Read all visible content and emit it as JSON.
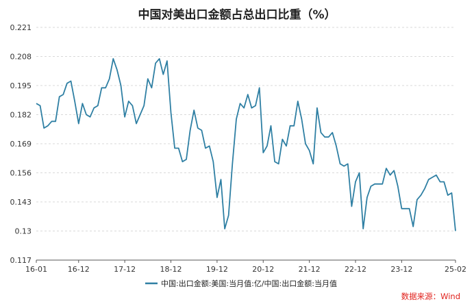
{
  "chart_data": {
    "type": "line",
    "title": "中国对美出口金额占总出口比重（%）",
    "source": "数据来源：Wind",
    "x_tick_labels": [
      "16-01",
      "16-12",
      "17-12",
      "18-12",
      "19-12",
      "20-12",
      "21-12",
      "22-12",
      "23-12",
      "25-02"
    ],
    "y_tick_labels": [
      "0.117",
      "0.13",
      "0.143",
      "0.156",
      "0.169",
      "0.182",
      "0.195",
      "0.208",
      "0.221"
    ],
    "ylim": [
      0.117,
      0.221
    ],
    "xlim": [
      "2016-01",
      "2025-02"
    ],
    "grid": "horizontal dashed",
    "legend_position": "bottom-center",
    "series": [
      {
        "name": "中国:出口金额:美国:当月值:亿/中国:出口金额:当月值",
        "color": "#2e7fa3",
        "x": [
          "2016-01",
          "2016-02",
          "2016-03",
          "2016-04",
          "2016-05",
          "2016-06",
          "2016-07",
          "2016-08",
          "2016-09",
          "2016-10",
          "2016-11",
          "2016-12",
          "2017-01",
          "2017-02",
          "2017-03",
          "2017-04",
          "2017-05",
          "2017-06",
          "2017-07",
          "2017-08",
          "2017-09",
          "2017-10",
          "2017-11",
          "2017-12",
          "2018-01",
          "2018-02",
          "2018-03",
          "2018-04",
          "2018-05",
          "2018-06",
          "2018-07",
          "2018-08",
          "2018-09",
          "2018-10",
          "2018-11",
          "2018-12",
          "2019-01",
          "2019-02",
          "2019-03",
          "2019-04",
          "2019-05",
          "2019-06",
          "2019-07",
          "2019-08",
          "2019-09",
          "2019-10",
          "2019-11",
          "2019-12",
          "2020-01",
          "2020-02",
          "2020-03",
          "2020-04",
          "2020-05",
          "2020-06",
          "2020-07",
          "2020-08",
          "2020-09",
          "2020-10",
          "2020-11",
          "2020-12",
          "2021-01",
          "2021-02",
          "2021-03",
          "2021-04",
          "2021-05",
          "2021-06",
          "2021-07",
          "2021-08",
          "2021-09",
          "2021-10",
          "2021-11",
          "2021-12",
          "2022-01",
          "2022-02",
          "2022-03",
          "2022-04",
          "2022-05",
          "2022-06",
          "2022-07",
          "2022-08",
          "2022-09",
          "2022-10",
          "2022-11",
          "2022-12",
          "2023-01",
          "2023-02",
          "2023-03",
          "2023-04",
          "2023-05",
          "2023-06",
          "2023-07",
          "2023-08",
          "2023-09",
          "2023-10",
          "2023-11",
          "2023-12",
          "2024-01",
          "2024-02",
          "2024-03",
          "2024-04",
          "2024-05",
          "2024-06",
          "2024-07",
          "2024-08",
          "2024-09",
          "2024-10",
          "2024-11",
          "2024-12",
          "2025-01",
          "2025-02"
        ],
        "values": [
          0.187,
          0.186,
          0.176,
          0.177,
          0.179,
          0.179,
          0.19,
          0.191,
          0.196,
          0.197,
          0.188,
          0.178,
          0.187,
          0.182,
          0.181,
          0.185,
          0.186,
          0.194,
          0.194,
          0.198,
          0.207,
          0.202,
          0.195,
          0.181,
          0.188,
          0.186,
          0.178,
          0.182,
          0.186,
          0.198,
          0.194,
          0.205,
          0.207,
          0.2,
          0.206,
          0.183,
          0.167,
          0.167,
          0.161,
          0.162,
          0.175,
          0.184,
          0.176,
          0.175,
          0.167,
          0.168,
          0.161,
          0.145,
          0.153,
          0.131,
          0.137,
          0.16,
          0.18,
          0.187,
          0.185,
          0.191,
          0.185,
          0.186,
          0.194,
          0.165,
          0.168,
          0.177,
          0.161,
          0.16,
          0.171,
          0.168,
          0.177,
          0.177,
          0.188,
          0.18,
          0.169,
          0.166,
          0.16,
          0.185,
          0.174,
          0.172,
          0.172,
          0.174,
          0.168,
          0.16,
          0.159,
          0.16,
          0.141,
          0.152,
          0.156,
          0.131,
          0.145,
          0.15,
          0.151,
          0.151,
          0.151,
          0.158,
          0.155,
          0.157,
          0.15,
          0.14,
          0.14,
          0.14,
          0.132,
          0.144,
          0.146,
          0.149,
          0.153,
          0.154,
          0.155,
          0.152,
          0.152,
          0.146,
          0.147,
          0.13
        ]
      }
    ]
  }
}
